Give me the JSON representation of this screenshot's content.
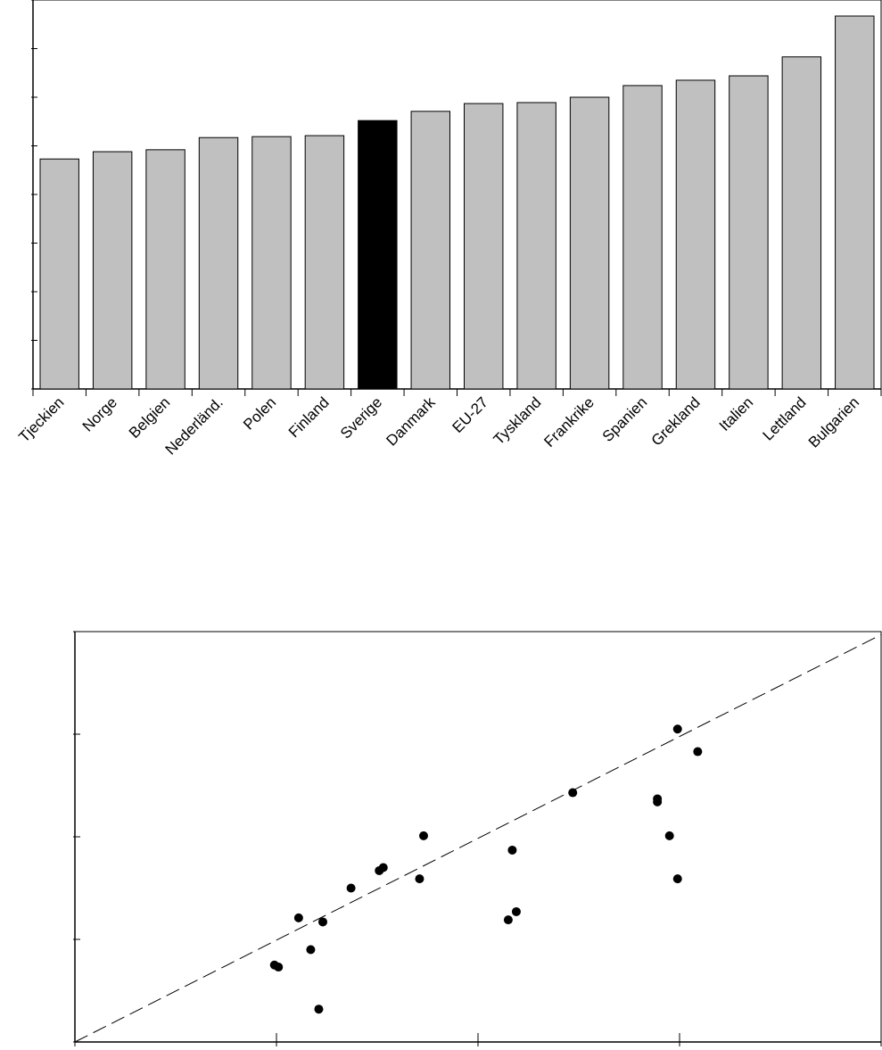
{
  "chart_data": [
    {
      "type": "bar",
      "title": "",
      "xlabel": "",
      "ylabel": "",
      "ylim": [
        0,
        8
      ],
      "yticks": [
        0,
        1,
        2,
        3,
        4,
        5,
        6,
        7,
        8
      ],
      "grid": false,
      "categories": [
        "Tjeckien",
        "Norge",
        "Belgien",
        "Nederländ.",
        "Polen",
        "Finland",
        "Sverige",
        "Danmark",
        "EU-27",
        "Tyskland",
        "Frankrike",
        "Spanien",
        "Grekland",
        "Italien",
        "Lettland",
        "Bulgarien"
      ],
      "values": [
        4.73,
        4.88,
        4.92,
        5.17,
        5.19,
        5.21,
        5.52,
        5.71,
        5.87,
        5.89,
        6.0,
        6.24,
        6.35,
        6.44,
        6.83,
        7.67
      ],
      "highlight": "Sverige",
      "colors": {
        "default": "#c0c0c0",
        "highlight": "#000000",
        "edge": "#000000"
      }
    },
    {
      "type": "scatter",
      "title": "",
      "xlabel": "",
      "ylabel": "",
      "xlim": [
        0,
        4
      ],
      "ylim": [
        0,
        4
      ],
      "xticks": [
        0,
        1,
        2,
        3,
        4
      ],
      "yticks": [
        0,
        1,
        2,
        3,
        4
      ],
      "grid": false,
      "points": [
        [
          0.99,
          0.75
        ],
        [
          1.01,
          0.73
        ],
        [
          1.11,
          1.21
        ],
        [
          1.17,
          0.9
        ],
        [
          1.21,
          0.32
        ],
        [
          1.23,
          1.17
        ],
        [
          1.37,
          1.5
        ],
        [
          1.51,
          1.67
        ],
        [
          1.53,
          1.7
        ],
        [
          1.71,
          1.59
        ],
        [
          1.73,
          2.01
        ],
        [
          2.15,
          1.19
        ],
        [
          2.17,
          1.87
        ],
        [
          2.19,
          1.27
        ],
        [
          2.47,
          2.43
        ],
        [
          2.89,
          2.37
        ],
        [
          2.89,
          2.34
        ],
        [
          2.95,
          2.01
        ],
        [
          2.99,
          3.05
        ],
        [
          2.99,
          1.59
        ],
        [
          3.09,
          2.83
        ]
      ],
      "reference_line": {
        "style": "dashed",
        "from": [
          0,
          0
        ],
        "to": [
          4,
          3.97
        ]
      },
      "colors": {
        "point": "#000000"
      }
    }
  ]
}
